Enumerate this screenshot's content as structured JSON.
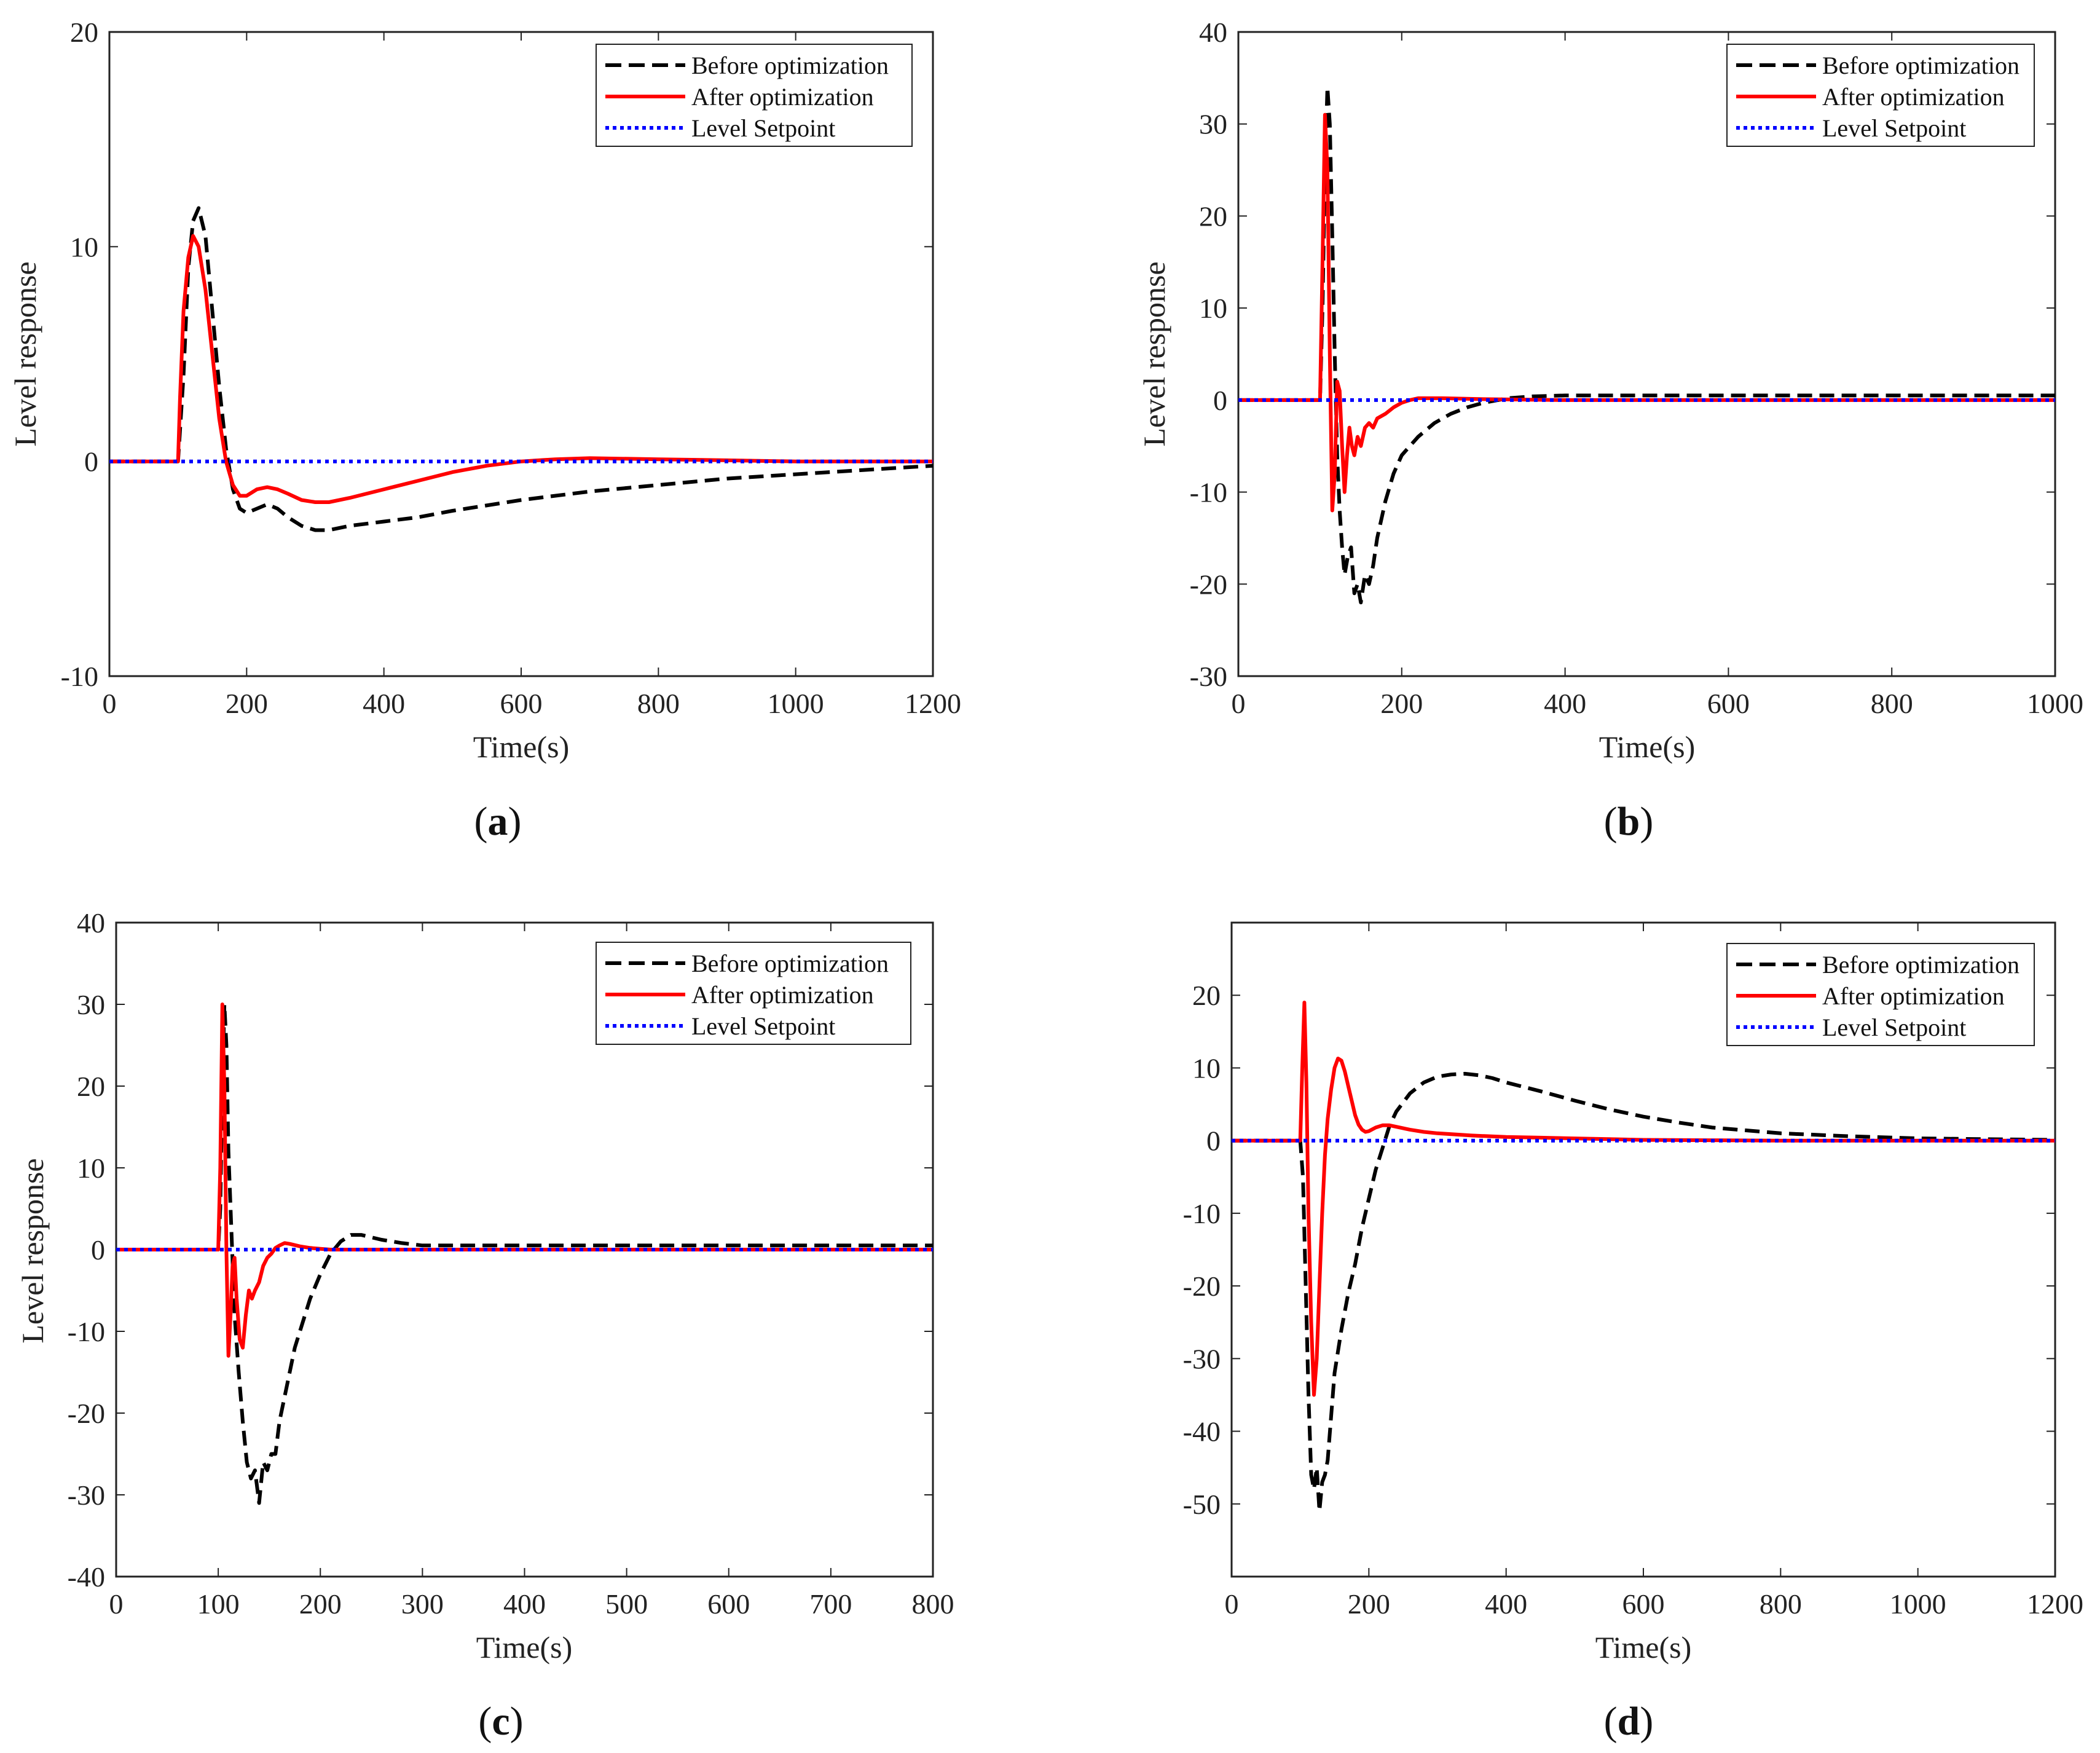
{
  "chart_data": [
    {
      "type": "line",
      "panel": "a",
      "caption_letter": "a",
      "xlabel": "Time(s)",
      "ylabel": "Level response",
      "xlim": [
        0,
        1200
      ],
      "ylim": [
        -10,
        20
      ],
      "xticks": [
        "0",
        "200",
        "400",
        "600",
        "800",
        "1000",
        "1200"
      ],
      "yticks": [
        "-10",
        "0",
        "10",
        "20"
      ],
      "legend": [
        "Before optimization",
        "After optimization",
        "Level Setpoint"
      ],
      "legend_position": "top-right",
      "series": [
        {
          "name": "Before optimization",
          "color": "#000000",
          "style": "dash",
          "x": [
            0,
            100,
            108,
            115,
            122,
            130,
            140,
            150,
            160,
            170,
            180,
            190,
            200,
            215,
            230,
            245,
            260,
            280,
            300,
            320,
            350,
            400,
            450,
            500,
            600,
            700,
            800,
            900,
            1000,
            1100,
            1200
          ],
          "y": [
            0,
            0,
            4.0,
            9.0,
            11.2,
            11.8,
            10.5,
            7.0,
            3.5,
            0.6,
            -1.3,
            -2.2,
            -2.4,
            -2.2,
            -2.0,
            -2.2,
            -2.6,
            -3.0,
            -3.2,
            -3.2,
            -3.0,
            -2.8,
            -2.6,
            -2.3,
            -1.8,
            -1.4,
            -1.1,
            -0.8,
            -0.6,
            -0.4,
            -0.2
          ]
        },
        {
          "name": "After optimization",
          "color": "#ff0000",
          "style": "solid",
          "x": [
            0,
            100,
            103,
            108,
            115,
            122,
            130,
            140,
            150,
            160,
            170,
            180,
            190,
            200,
            215,
            230,
            245,
            260,
            280,
            300,
            320,
            350,
            400,
            450,
            500,
            550,
            600,
            650,
            700,
            800,
            900,
            1000,
            1100,
            1200
          ],
          "y": [
            0,
            0,
            3.0,
            7.0,
            9.5,
            10.5,
            10.0,
            8.0,
            5.0,
            2.0,
            0.0,
            -1.1,
            -1.6,
            -1.6,
            -1.3,
            -1.2,
            -1.3,
            -1.5,
            -1.8,
            -1.9,
            -1.9,
            -1.7,
            -1.3,
            -0.9,
            -0.5,
            -0.2,
            0.0,
            0.1,
            0.15,
            0.1,
            0.05,
            0.0,
            0.0,
            0.0
          ]
        },
        {
          "name": "Level Setpoint",
          "color": "#0000ff",
          "style": "dot",
          "x": [
            0,
            1200
          ],
          "y": [
            0,
            0
          ]
        }
      ]
    },
    {
      "type": "line",
      "panel": "b",
      "caption_letter": "b",
      "xlabel": "Time(s)",
      "ylabel": "Level response",
      "xlim": [
        0,
        1000
      ],
      "ylim": [
        -30,
        40
      ],
      "xticks": [
        "0",
        "200",
        "400",
        "600",
        "800",
        "1000"
      ],
      "yticks": [
        "-30",
        "-20",
        "-10",
        "0",
        "10",
        "20",
        "30",
        "40"
      ],
      "legend": [
        "Before optimization",
        "After optimization",
        "Level Setpoint"
      ],
      "legend_position": "top-right",
      "series": [
        {
          "name": "Before optimization",
          "color": "#000000",
          "style": "dash",
          "x": [
            0,
            100,
            103,
            106,
            109,
            112,
            115,
            118,
            121,
            124,
            127,
            130,
            134,
            138,
            142,
            146,
            150,
            155,
            160,
            165,
            170,
            180,
            190,
            200,
            220,
            240,
            260,
            280,
            300,
            330,
            360,
            400,
            500,
            600,
            700,
            800,
            900,
            1000
          ],
          "y": [
            0,
            0,
            10,
            25,
            34,
            30,
            18,
            5,
            -6,
            -12,
            -16,
            -19,
            -17,
            -16,
            -21,
            -20,
            -22,
            -19,
            -20,
            -18,
            -15,
            -11,
            -8,
            -6,
            -4,
            -2.5,
            -1.5,
            -0.8,
            -0.3,
            0.2,
            0.4,
            0.5,
            0.5,
            0.5,
            0.5,
            0.5,
            0.5,
            0.5
          ]
        },
        {
          "name": "After optimization",
          "color": "#ff0000",
          "style": "solid",
          "x": [
            0,
            100,
            103,
            106,
            109,
            112,
            115,
            118,
            121,
            124,
            127,
            130,
            133,
            136,
            139,
            142,
            146,
            150,
            155,
            160,
            165,
            170,
            180,
            190,
            200,
            210,
            220,
            250,
            300,
            400,
            600,
            800,
            1000
          ],
          "y": [
            0,
            0,
            15,
            31,
            25,
            5,
            -12,
            -8,
            2,
            1,
            -5,
            -10,
            -6,
            -3,
            -5,
            -6,
            -4,
            -5,
            -3,
            -2.5,
            -3,
            -2,
            -1.5,
            -0.8,
            -0.3,
            0,
            0.2,
            0.2,
            0.1,
            0,
            0,
            0,
            0
          ]
        },
        {
          "name": "Level Setpoint",
          "color": "#0000ff",
          "style": "dot",
          "x": [
            0,
            1000
          ],
          "y": [
            0,
            0
          ]
        }
      ]
    },
    {
      "type": "line",
      "panel": "c",
      "caption_letter": "c",
      "xlabel": "Time(s)",
      "ylabel": "Level response",
      "xlim": [
        0,
        800
      ],
      "ylim": [
        -40,
        40
      ],
      "xticks": [
        "0",
        "100",
        "200",
        "300",
        "400",
        "500",
        "600",
        "700",
        "800"
      ],
      "yticks": [
        "-40",
        "-30",
        "-20",
        "-10",
        "0",
        "10",
        "20",
        "30",
        "40"
      ],
      "legend": [
        "Before optimization",
        "After optimization",
        "Level Setpoint"
      ],
      "legend_position": "top-right",
      "series": [
        {
          "name": "Before optimization",
          "color": "#000000",
          "style": "dash",
          "x": [
            0,
            100,
            102,
            104,
            106,
            108,
            110,
            113,
            116,
            120,
            124,
            128,
            132,
            136,
            140,
            144,
            148,
            152,
            156,
            160,
            165,
            170,
            175,
            180,
            190,
            200,
            210,
            220,
            230,
            240,
            260,
            280,
            300,
            350,
            400,
            500,
            600,
            700,
            800
          ],
          "y": [
            0,
            0,
            5,
            20,
            30,
            25,
            12,
            2,
            -8,
            -15,
            -21,
            -26,
            -28,
            -27,
            -31,
            -26,
            -27,
            -25,
            -25,
            -21,
            -18,
            -15,
            -12,
            -10,
            -6,
            -3,
            -0.5,
            1,
            1.8,
            1.8,
            1.2,
            0.8,
            0.5,
            0.5,
            0.5,
            0.5,
            0.5,
            0.5,
            0.5
          ]
        },
        {
          "name": "After optimization",
          "color": "#ff0000",
          "style": "solid",
          "x": [
            0,
            100,
            102,
            104,
            106,
            108,
            110,
            112,
            114,
            116,
            118,
            121,
            124,
            127,
            130,
            133,
            136,
            140,
            144,
            148,
            152,
            156,
            160,
            165,
            170,
            180,
            190,
            200,
            210,
            230,
            260,
            300,
            400,
            600,
            800
          ],
          "y": [
            0,
            0,
            10,
            30,
            20,
            0,
            -13,
            -8,
            -2,
            -1,
            -6,
            -11,
            -12,
            -8,
            -5,
            -6,
            -5,
            -4,
            -2,
            -1,
            -0.5,
            0.2,
            0.5,
            0.8,
            0.7,
            0.4,
            0.2,
            0.1,
            0,
            0,
            0,
            0,
            0,
            0,
            0
          ]
        },
        {
          "name": "Level Setpoint",
          "color": "#0000ff",
          "style": "dot",
          "x": [
            0,
            800
          ],
          "y": [
            0,
            0
          ]
        }
      ]
    },
    {
      "type": "line",
      "panel": "d",
      "caption_letter": "d",
      "xlabel": "Time(s)",
      "ylabel": "",
      "xlim": [
        0,
        1200
      ],
      "ylim": [
        -60,
        30
      ],
      "xticks": [
        "0",
        "200",
        "400",
        "600",
        "800",
        "1000",
        "1200"
      ],
      "yticks": [
        "-50",
        "-40",
        "-30",
        "-20",
        "-10",
        "0",
        "10",
        "20"
      ],
      "legend": [
        "Before optimization",
        "After optimization",
        "Level Setpoint"
      ],
      "legend_position": "top-right",
      "series": [
        {
          "name": "Before optimization",
          "color": "#000000",
          "style": "dash",
          "x": [
            0,
            100,
            104,
            108,
            112,
            116,
            120,
            124,
            128,
            132,
            136,
            140,
            145,
            150,
            160,
            170,
            180,
            190,
            200,
            210,
            220,
            230,
            240,
            260,
            280,
            300,
            320,
            340,
            360,
            380,
            400,
            450,
            500,
            550,
            600,
            650,
            700,
            800,
            900,
            1000,
            1100,
            1200
          ],
          "y": [
            0,
            0,
            -5,
            -20,
            -35,
            -46,
            -48,
            -45,
            -51,
            -47,
            -46,
            -44,
            -38,
            -32,
            -26,
            -21,
            -17,
            -12,
            -8,
            -4,
            -1,
            2,
            4,
            6.5,
            8,
            8.8,
            9.1,
            9.2,
            9.0,
            8.6,
            8.0,
            6.8,
            5.5,
            4.3,
            3.3,
            2.5,
            1.8,
            1.0,
            0.6,
            0.3,
            0.2,
            0.1
          ]
        },
        {
          "name": "After optimization",
          "color": "#ff0000",
          "style": "solid",
          "x": [
            0,
            100,
            103,
            106,
            109,
            112,
            116,
            120,
            124,
            128,
            132,
            136,
            140,
            145,
            150,
            155,
            160,
            165,
            170,
            175,
            180,
            185,
            190,
            195,
            200,
            210,
            220,
            230,
            240,
            250,
            260,
            280,
            300,
            350,
            400,
            450,
            500,
            550,
            600,
            700,
            800,
            1000,
            1200
          ],
          "y": [
            0,
            0,
            10,
            19,
            8,
            -10,
            -25,
            -35,
            -30,
            -20,
            -10,
            -2,
            3,
            7,
            10,
            11.3,
            11,
            9.5,
            7.5,
            5.5,
            3.5,
            2.2,
            1.5,
            1.2,
            1.3,
            1.8,
            2.1,
            2.1,
            1.9,
            1.7,
            1.5,
            1.2,
            1.0,
            0.7,
            0.5,
            0.4,
            0.3,
            0.2,
            0.1,
            0.05,
            0,
            0,
            0
          ]
        },
        {
          "name": "Level Setpoint",
          "color": "#0000ff",
          "style": "dot",
          "x": [
            0,
            1200
          ],
          "y": [
            0,
            0
          ]
        }
      ]
    }
  ]
}
